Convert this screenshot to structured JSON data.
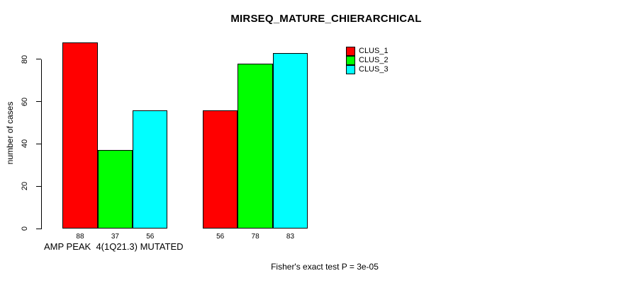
{
  "chart_data": {
    "type": "bar",
    "title": "MIRSEQ_MATURE_CHIERARCHICAL",
    "ylabel": "number of cases",
    "xlabel": "",
    "ylim": [
      0,
      88
    ],
    "yticks": [
      0,
      20,
      40,
      60,
      80
    ],
    "grid": false,
    "legend_position": "top-right-inside",
    "categories": [
      "AMP PEAK  4(1Q21.3) MUTATED",
      ""
    ],
    "series": [
      {
        "name": "CLUS_1",
        "color": "#FF0000",
        "values": [
          88,
          56
        ]
      },
      {
        "name": "CLUS_2",
        "color": "#00FF00",
        "values": [
          37,
          78
        ]
      },
      {
        "name": "CLUS_3",
        "color": "#00FFFF",
        "values": [
          56,
          83
        ]
      }
    ],
    "bar_value_labels_shown": true,
    "annotation": "Fisher's exact test P = 3e-05"
  }
}
